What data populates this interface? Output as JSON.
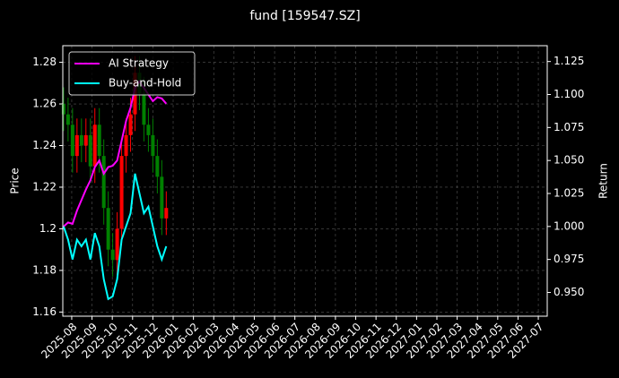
{
  "chart_data": {
    "type": "candlestick",
    "title": "fund [159547.SZ]",
    "ylabel": "Price",
    "y2label": "Return",
    "x": [
      -0.4,
      -0.18,
      0.04,
      0.26,
      0.48,
      0.7,
      0.92,
      1.14,
      1.36,
      1.58,
      1.8,
      2.02,
      2.24,
      2.46,
      2.68,
      2.9,
      3.12,
      3.34,
      3.56,
      3.78,
      4.0,
      4.22,
      4.44,
      4.66
    ],
    "open": [
      1.26,
      1.255,
      1.25,
      1.235,
      1.245,
      1.24,
      1.245,
      1.23,
      1.25,
      1.235,
      1.21,
      1.19,
      1.185,
      1.2,
      1.235,
      1.245,
      1.255,
      1.275,
      1.265,
      1.25,
      1.245,
      1.235,
      1.225,
      1.205
    ],
    "close": [
      1.255,
      1.25,
      1.235,
      1.245,
      1.24,
      1.245,
      1.23,
      1.25,
      1.235,
      1.21,
      1.19,
      1.185,
      1.2,
      1.235,
      1.245,
      1.255,
      1.275,
      1.265,
      1.25,
      1.245,
      1.235,
      1.225,
      1.205,
      1.21
    ],
    "high": [
      1.268,
      1.263,
      1.258,
      1.253,
      1.253,
      1.253,
      1.253,
      1.258,
      1.258,
      1.243,
      1.218,
      1.198,
      1.208,
      1.243,
      1.253,
      1.263,
      1.283,
      1.283,
      1.273,
      1.258,
      1.253,
      1.243,
      1.233,
      1.218
    ],
    "low": [
      1.247,
      1.242,
      1.227,
      1.227,
      1.232,
      1.232,
      1.222,
      1.222,
      1.227,
      1.202,
      1.182,
      1.177,
      1.177,
      1.192,
      1.227,
      1.237,
      1.247,
      1.257,
      1.242,
      1.237,
      1.227,
      1.217,
      1.197,
      1.197
    ],
    "up_color": "#ff0000",
    "down_color": "#008000",
    "series": [
      {
        "name": "AI Strategy",
        "color": "#ff00ff",
        "axis": "y2",
        "values": [
          1.0,
          1.003,
          1.002,
          1.012,
          1.02,
          1.028,
          1.035,
          1.045,
          1.05,
          1.04,
          1.045,
          1.046,
          1.05,
          1.065,
          1.08,
          1.09,
          1.105,
          1.11,
          1.105,
          1.1,
          1.095,
          1.098,
          1.097,
          1.093
        ]
      },
      {
        "name": "Buy-and-Hold",
        "color": "#00ffff",
        "axis": "y2",
        "values": [
          1.0,
          0.99,
          0.975,
          0.99,
          0.985,
          0.99,
          0.975,
          0.995,
          0.985,
          0.96,
          0.945,
          0.947,
          0.96,
          0.99,
          1.0,
          1.01,
          1.04,
          1.025,
          1.01,
          1.015,
          1.0,
          0.985,
          0.975,
          0.985
        ]
      }
    ],
    "xlim": [
      -0.44,
      23.44
    ],
    "xticks": [
      {
        "value": 0,
        "label": "2025-08"
      },
      {
        "value": 1,
        "label": "2025-09"
      },
      {
        "value": 2,
        "label": "2025-10"
      },
      {
        "value": 3,
        "label": "2025-11"
      },
      {
        "value": 4,
        "label": "2025-12"
      },
      {
        "value": 5,
        "label": "2026-01"
      },
      {
        "value": 6,
        "label": "2026-02"
      },
      {
        "value": 7,
        "label": "2026-03"
      },
      {
        "value": 8,
        "label": "2026-04"
      },
      {
        "value": 9,
        "label": "2026-05"
      },
      {
        "value": 10,
        "label": "2026-06"
      },
      {
        "value": 11,
        "label": "2026-07"
      },
      {
        "value": 12,
        "label": "2026-08"
      },
      {
        "value": 13,
        "label": "2026-09"
      },
      {
        "value": 14,
        "label": "2026-10"
      },
      {
        "value": 15,
        "label": "2026-11"
      },
      {
        "value": 16,
        "label": "2026-12"
      },
      {
        "value": 17,
        "label": "2027-01"
      },
      {
        "value": 18,
        "label": "2027-02"
      },
      {
        "value": 19,
        "label": "2027-03"
      },
      {
        "value": 20,
        "label": "2027-04"
      },
      {
        "value": 21,
        "label": "2027-05"
      },
      {
        "value": 22,
        "label": "2027-06"
      },
      {
        "value": 23,
        "label": "2027-07"
      }
    ],
    "ylim": [
      1.158,
      1.288
    ],
    "yticks": [
      1.16,
      1.18,
      1.2,
      1.22,
      1.24,
      1.26,
      1.28
    ],
    "y2lim": [
      0.932,
      1.137
    ],
    "y2ticks": [
      {
        "value": 0.95,
        "label": "0.950"
      },
      {
        "value": 0.975,
        "label": "0.975"
      },
      {
        "value": 1.0,
        "label": "1.000"
      },
      {
        "value": 1.025,
        "label": "1.025"
      },
      {
        "value": 1.05,
        "label": "1.050"
      },
      {
        "value": 1.075,
        "label": "1.075"
      },
      {
        "value": 1.1,
        "label": "1.100"
      },
      {
        "value": 1.125,
        "label": "1.125"
      }
    ],
    "grid": true,
    "legend": "upper left"
  }
}
